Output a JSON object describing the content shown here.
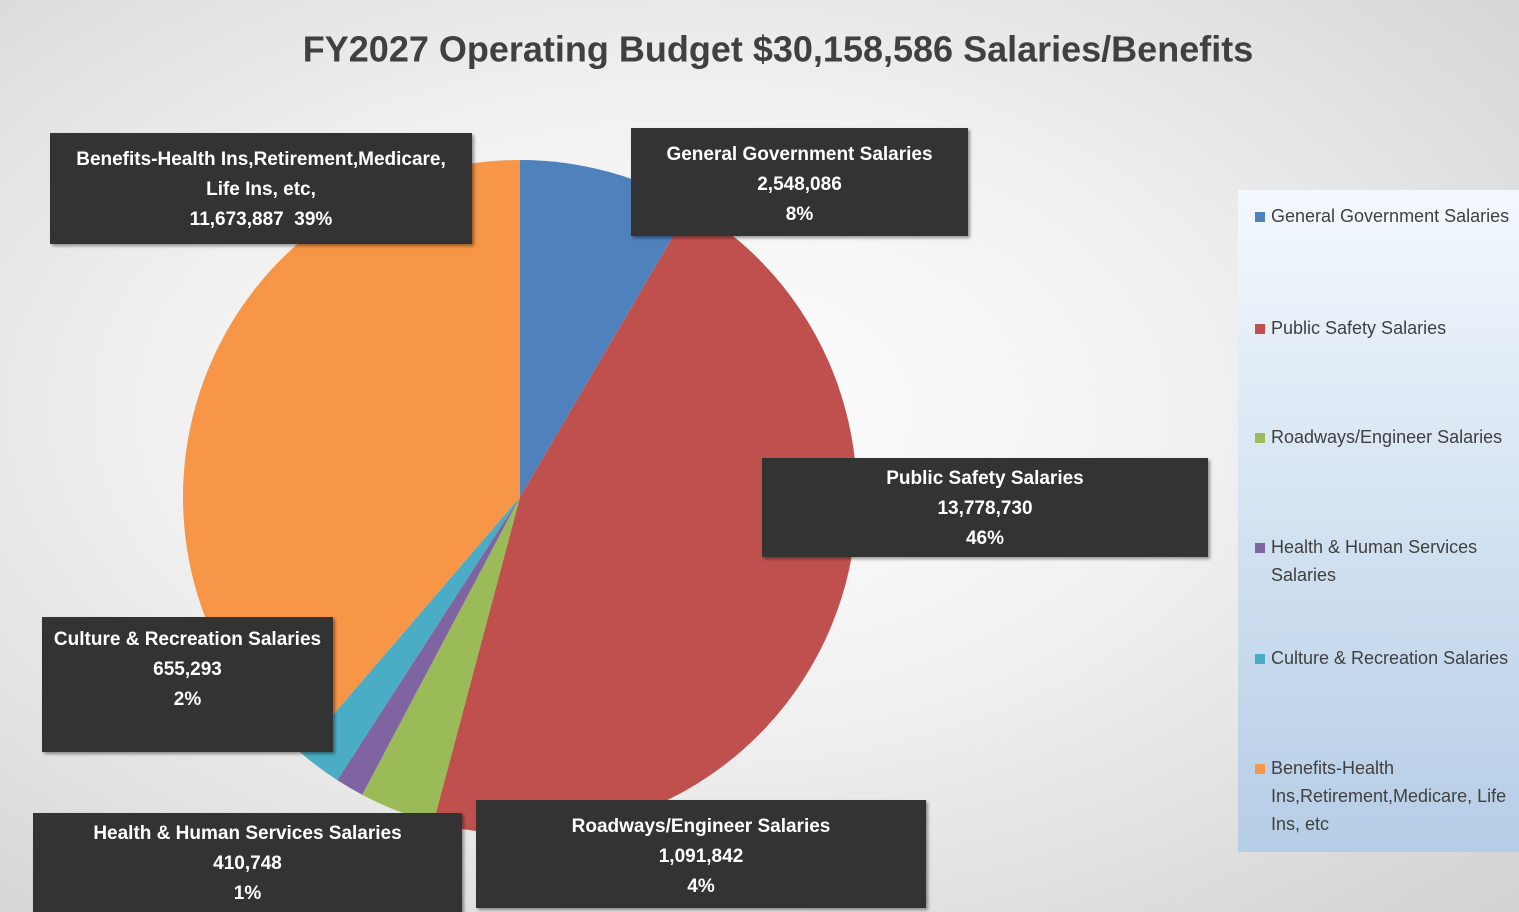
{
  "chart_data": {
    "type": "pie",
    "title": "FY2027  Operating Budget $30,158,586 Salaries/Benefits",
    "categories": [
      "General Government Salaries",
      "Public Safety Salaries",
      "Roadways/Engineer Salaries",
      "Health & Human Services Salaries",
      "Culture & Recreation Salaries",
      "Benefits-Health Ins,Retirement,Medicare, Life Ins, etc"
    ],
    "label_names": [
      "General Government Salaries",
      "Public Safety Salaries",
      "Roadways/Engineer Salaries",
      "Health & Human Services Salaries",
      "Culture & Recreation Salaries",
      "Benefits-Health Ins,Retirement,Medicare, Life Ins, etc,"
    ],
    "values": [
      2548086,
      13778730,
      1091842,
      410748,
      655293,
      11673887
    ],
    "value_labels": [
      "2,548,086",
      "13,778,730",
      "1,091,842",
      "410,748",
      "655,293",
      "11,673,887"
    ],
    "percent_labels": [
      "8%",
      "46%",
      "4%",
      "1%",
      "2%",
      "39%"
    ],
    "colors": [
      "#4f81bd",
      "#c0504d",
      "#9bbb59",
      "#8064a2",
      "#4bacc6",
      "#f79646"
    ],
    "legend": "right"
  }
}
